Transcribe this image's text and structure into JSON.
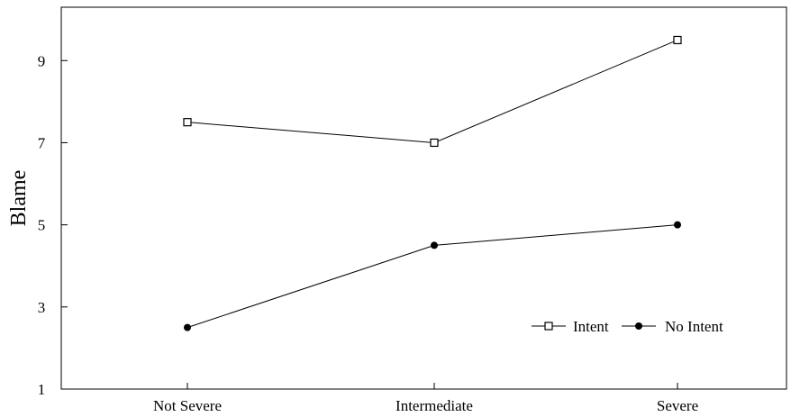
{
  "chart_data": {
    "type": "line",
    "categories": [
      "Not Severe",
      "Intermediate",
      "Severe"
    ],
    "series": [
      {
        "name": "Intent",
        "values": [
          7.5,
          7.0,
          9.5
        ],
        "marker": "open-square",
        "color": "#000000"
      },
      {
        "name": "No Intent",
        "values": [
          2.5,
          4.5,
          5.0
        ],
        "marker": "filled-circle",
        "color": "#000000"
      }
    ],
    "title": "",
    "xlabel": "",
    "ylabel": "Blame",
    "ylim": [
      1,
      10.3
    ],
    "yticks": [
      1,
      3,
      5,
      7,
      9
    ],
    "grid": false,
    "legend_position": "bottom-right"
  }
}
